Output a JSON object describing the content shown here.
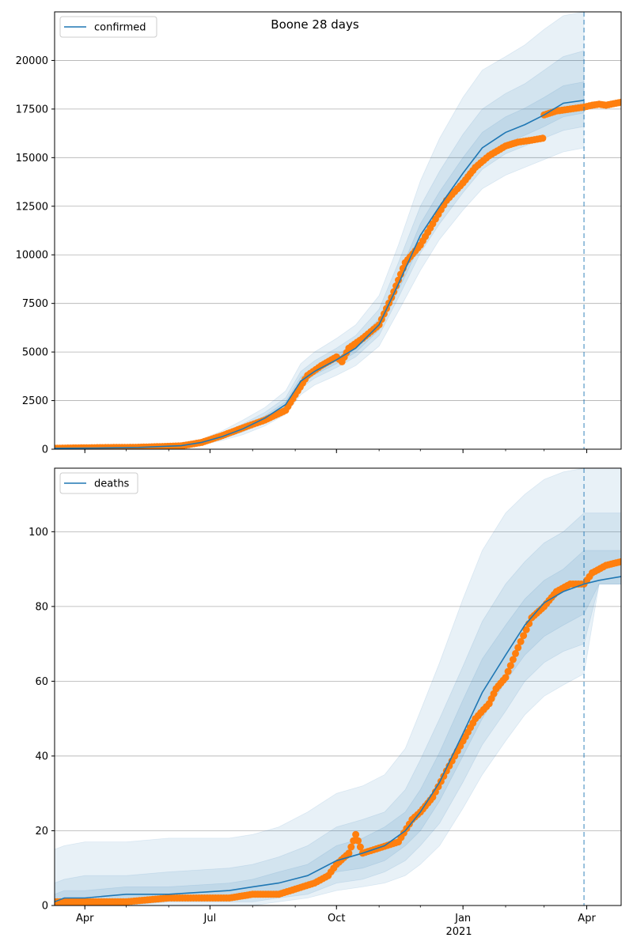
{
  "figure_title": "Boone 28 days",
  "colors": {
    "model": "#1f77b4",
    "observed": "#ff7f0e",
    "band": "#1f77b4",
    "grid": "#b0b0b0",
    "forecast_line": "#1f77b4"
  },
  "x_ticks": [
    {
      "label": "Apr",
      "date": "2020-04-01"
    },
    {
      "label": "Jul",
      "date": "2020-07-01"
    },
    {
      "label": "Oct",
      "date": "2020-10-01"
    },
    {
      "label": "Jan",
      "date": "2021-01-01"
    },
    {
      "label": "Apr",
      "date": "2021-04-01"
    }
  ],
  "x_year_label": "2021",
  "chart_data": [
    {
      "type": "line",
      "legend": "confirmed",
      "legend_position": "upper-left",
      "grid": "horizontal",
      "xlim": [
        "2020-03-10",
        "2021-04-26"
      ],
      "ylim": [
        0,
        22500
      ],
      "yticks": [
        0,
        2500,
        5000,
        7500,
        10000,
        12500,
        15000,
        17500,
        20000
      ],
      "forecast_start": "2021-03-30",
      "model": {
        "x": [
          "2020-03-10",
          "2020-04-10",
          "2020-05-10",
          "2020-06-10",
          "2020-06-25",
          "2020-07-10",
          "2020-07-25",
          "2020-08-10",
          "2020-08-25",
          "2020-09-05",
          "2020-09-15",
          "2020-10-01",
          "2020-10-15",
          "2020-11-01",
          "2020-11-15",
          "2020-12-01",
          "2020-12-15",
          "2021-01-01",
          "2021-01-15",
          "2021-02-01",
          "2021-02-15",
          "2021-03-01",
          "2021-03-15",
          "2021-03-30"
        ],
        "y": [
          50,
          60,
          90,
          180,
          350,
          650,
          1050,
          1600,
          2300,
          3500,
          4000,
          4600,
          5200,
          6400,
          8500,
          11000,
          12500,
          14200,
          15500,
          16300,
          16700,
          17200,
          17800,
          17950
        ]
      },
      "bands": [
        {
          "lower": [
            20,
            30,
            50,
            110,
            230,
            450,
            750,
            1200,
            1800,
            2800,
            3300,
            3800,
            4300,
            5300,
            7100,
            9200,
            10800,
            12300,
            13400,
            14100,
            14500,
            14900,
            15300,
            15500
          ],
          "upper": [
            100,
            110,
            150,
            280,
            520,
            950,
            1500,
            2150,
            3000,
            4400,
            5000,
            5700,
            6400,
            7900,
            10500,
            13800,
            16000,
            18100,
            19500,
            20200,
            20800,
            21600,
            22300,
            22500
          ]
        },
        {
          "lower": [
            30,
            40,
            65,
            135,
            280,
            540,
            890,
            1400,
            2050,
            3150,
            3650,
            4200,
            4750,
            5850,
            7800,
            10100,
            11600,
            13200,
            14400,
            15200,
            15600,
            16000,
            16400,
            16600
          ],
          "upper": [
            80,
            90,
            125,
            240,
            450,
            820,
            1300,
            1900,
            2650,
            4000,
            4550,
            5200,
            5850,
            7200,
            9600,
            12500,
            14300,
            16200,
            17500,
            18300,
            18800,
            19500,
            20200,
            20500
          ]
        },
        {
          "lower": [
            40,
            50,
            78,
            158,
            315,
            595,
            970,
            1500,
            2180,
            3330,
            3830,
            4400,
            4980,
            6130,
            8180,
            10550,
            12050,
            13700,
            14950,
            15750,
            16150,
            16600,
            17100,
            17300
          ],
          "upper": [
            65,
            75,
            108,
            210,
            395,
            720,
            1150,
            1720,
            2450,
            3720,
            4220,
            4850,
            5460,
            6720,
            8900,
            11600,
            13250,
            15000,
            16300,
            17100,
            17550,
            18100,
            18700,
            18900
          ]
        }
      ],
      "observed": {
        "x": [
          "2020-03-10",
          "2020-04-10",
          "2020-05-10",
          "2020-06-10",
          "2020-06-25",
          "2020-07-10",
          "2020-07-25",
          "2020-08-10",
          "2020-08-25",
          "2020-09-01",
          "2020-09-10",
          "2020-09-20",
          "2020-10-01",
          "2020-10-05",
          "2020-10-10",
          "2020-10-20",
          "2020-11-01",
          "2020-11-10",
          "2020-11-15",
          "2020-11-20",
          "2020-12-01",
          "2020-12-10",
          "2020-12-20",
          "2021-01-01",
          "2021-01-10",
          "2021-01-20",
          "2021-02-01",
          "2021-02-10",
          "2021-02-20",
          "2021-02-28",
          "2021-03-01",
          "2021-03-10",
          "2021-03-20",
          "2021-03-30",
          "2021-04-05",
          "2021-04-10",
          "2021-04-15",
          "2021-04-26"
        ],
        "y": [
          50,
          80,
          100,
          170,
          350,
          700,
          1100,
          1500,
          2000,
          2800,
          3800,
          4300,
          4750,
          4500,
          5200,
          5700,
          6400,
          7800,
          8700,
          9600,
          10500,
          11600,
          12800,
          13700,
          14500,
          15100,
          15600,
          15800,
          15900,
          16000,
          17200,
          17400,
          17500,
          17600,
          17700,
          17750,
          17700,
          17850
        ]
      }
    },
    {
      "type": "line",
      "legend": "deaths",
      "legend_position": "upper-left",
      "grid": "horizontal",
      "xlim": [
        "2020-03-10",
        "2021-04-26"
      ],
      "ylim": [
        0,
        117
      ],
      "yticks": [
        0,
        20,
        40,
        60,
        80,
        100
      ],
      "forecast_start": "2021-03-30",
      "model": {
        "x": [
          "2020-03-10",
          "2020-03-17",
          "2020-04-01",
          "2020-05-01",
          "2020-06-01",
          "2020-07-15",
          "2020-08-01",
          "2020-08-20",
          "2020-09-10",
          "2020-10-01",
          "2020-10-20",
          "2020-11-05",
          "2020-11-20",
          "2020-12-01",
          "2020-12-15",
          "2021-01-01",
          "2021-01-15",
          "2021-02-01",
          "2021-02-15",
          "2021-03-01",
          "2021-03-15",
          "2021-03-30",
          "2021-04-10",
          "2021-04-26"
        ],
        "y": [
          1,
          2,
          2,
          3,
          3,
          4,
          5,
          6,
          8,
          12,
          14,
          16,
          20,
          25,
          33,
          46,
          57,
          67,
          75,
          81,
          84,
          86,
          87,
          88
        ]
      },
      "bands": [
        {
          "lower": [
            0,
            0,
            0,
            0,
            0,
            0,
            0,
            1,
            2,
            4,
            5,
            6,
            8,
            11,
            16,
            26,
            35,
            44,
            51,
            56,
            59,
            62,
            86,
            86
          ],
          "upper": [
            15,
            16,
            17,
            17,
            18,
            18,
            19,
            21,
            25,
            30,
            32,
            35,
            42,
            52,
            65,
            82,
            95,
            105,
            110,
            114,
            116,
            117,
            117,
            117
          ]
        },
        {
          "lower": [
            0,
            0,
            0,
            0,
            1,
            1,
            1,
            2,
            3,
            6,
            7,
            9,
            12,
            16,
            22,
            33,
            43,
            52,
            60,
            65,
            68,
            70,
            86,
            86
          ],
          "upper": [
            6,
            7,
            8,
            8,
            9,
            10,
            11,
            13,
            16,
            21,
            23,
            25,
            31,
            39,
            50,
            64,
            76,
            86,
            92,
            97,
            100,
            105,
            105,
            105
          ]
        },
        {
          "lower": [
            0,
            1,
            1,
            1,
            2,
            2,
            3,
            4,
            5,
            9,
            10,
            12,
            16,
            20,
            28,
            40,
            50,
            60,
            67,
            72,
            75,
            78,
            86,
            86
          ],
          "upper": [
            3,
            4,
            4,
            5,
            5,
            6,
            7,
            9,
            11,
            16,
            18,
            21,
            25,
            31,
            41,
            55,
            66,
            75,
            82,
            87,
            90,
            95,
            95,
            95
          ]
        }
      ],
      "observed": {
        "x": [
          "2020-03-10",
          "2020-05-01",
          "2020-06-01",
          "2020-07-15",
          "2020-08-01",
          "2020-08-20",
          "2020-09-15",
          "2020-09-25",
          "2020-10-01",
          "2020-10-10",
          "2020-10-15",
          "2020-10-20",
          "2020-11-15",
          "2020-11-25",
          "2020-12-01",
          "2020-12-10",
          "2020-12-20",
          "2021-01-01",
          "2021-01-10",
          "2021-01-20",
          "2021-01-25",
          "2021-02-01",
          "2021-02-10",
          "2021-02-20",
          "2021-03-01",
          "2021-03-10",
          "2021-03-20",
          "2021-03-30",
          "2021-04-05",
          "2021-04-15",
          "2021-04-26"
        ],
        "y": [
          1,
          1,
          2,
          2,
          3,
          3,
          6,
          8,
          11,
          14,
          19,
          14,
          17,
          23,
          25,
          29,
          36,
          44,
          50,
          54,
          58,
          61,
          69,
          77,
          80,
          84,
          86,
          86,
          89,
          91,
          92
        ]
      }
    }
  ]
}
